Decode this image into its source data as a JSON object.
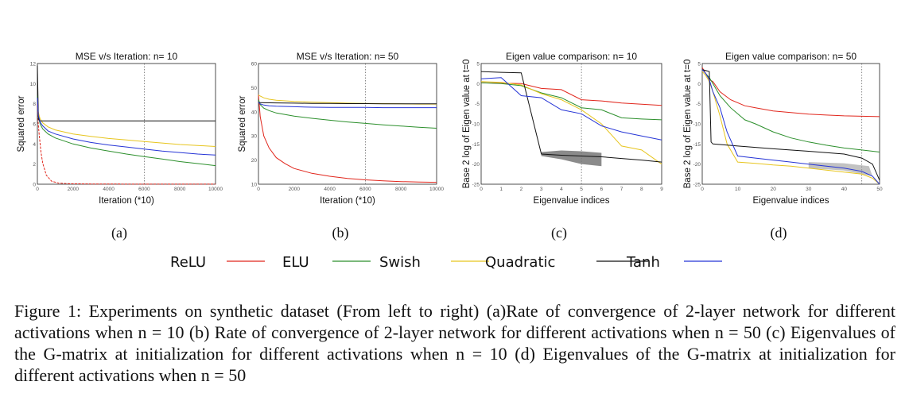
{
  "chart_data": [
    {
      "type": "line",
      "title": "MSE v/s Iteration: n= 10",
      "xlabel": "Iteration (*10)",
      "ylabel": "Squared error",
      "xlim": [
        0,
        10000
      ],
      "ylim": [
        0,
        12
      ],
      "x_ticks": [
        "0",
        "2000",
        "4000",
        "6000",
        "8000",
        "10000"
      ],
      "y_ticks": [
        "0",
        "2",
        "4",
        "6",
        "8",
        "10",
        "12"
      ],
      "grid": "x at 6000",
      "series": [
        {
          "name": "ReLU",
          "color": "#e1261c",
          "x": [
            0,
            50,
            100,
            200,
            300,
            500,
            800,
            1200,
            1800,
            3000,
            6000,
            10000
          ],
          "values": [
            8,
            6,
            5,
            3.2,
            2.1,
            0.9,
            0.3,
            0.1,
            0.05,
            0.02,
            0.01,
            0.01
          ]
        },
        {
          "name": "ELU",
          "color": "#2c8f2c",
          "x": [
            0,
            50,
            150,
            300,
            600,
            1000,
            2000,
            3000,
            4000,
            5000,
            6000,
            7000,
            8000,
            9000,
            10000
          ],
          "values": [
            8.8,
            6.8,
            6.0,
            5.5,
            5.0,
            4.6,
            4.0,
            3.6,
            3.3,
            3.0,
            2.75,
            2.5,
            2.25,
            2.05,
            1.85
          ]
        },
        {
          "name": "Swish",
          "color": "#e7c51e",
          "x": [
            0,
            50,
            150,
            300,
            600,
            1000,
            2000,
            3000,
            4000,
            5000,
            6000,
            7000,
            8000,
            9000,
            10000
          ],
          "values": [
            8.5,
            7.2,
            6.5,
            6.1,
            5.7,
            5.4,
            5.0,
            4.75,
            4.55,
            4.4,
            4.25,
            4.1,
            3.95,
            3.85,
            3.75
          ]
        },
        {
          "name": "Quadratic",
          "color": "#111111",
          "x": [
            0,
            60,
            120,
            10000
          ],
          "values": [
            11.8,
            6.5,
            6.3,
            6.3
          ]
        },
        {
          "name": "Tanh",
          "color": "#2534d6",
          "x": [
            0,
            50,
            150,
            300,
            600,
            1000,
            2000,
            3000,
            4000,
            5000,
            6000,
            7000,
            8000,
            9000,
            10000
          ],
          "values": [
            8.6,
            6.9,
            6.2,
            5.8,
            5.3,
            5.0,
            4.5,
            4.15,
            3.9,
            3.7,
            3.5,
            3.3,
            3.15,
            3.0,
            2.9
          ]
        }
      ]
    },
    {
      "type": "line",
      "title": "MSE v/s Iteration: n= 50",
      "xlabel": "Iteration (*10)",
      "ylabel": "Squared error",
      "xlim": [
        0,
        10000
      ],
      "ylim": [
        10,
        60
      ],
      "x_ticks": [
        "0",
        "2000",
        "4000",
        "6000",
        "8000",
        "10000"
      ],
      "y_ticks": [
        "10",
        "20",
        "30",
        "40",
        "50",
        "60"
      ],
      "grid": "x at 6000",
      "series": [
        {
          "name": "ReLU",
          "color": "#e1261c",
          "x": [
            0,
            100,
            300,
            600,
            1000,
            1500,
            2000,
            3000,
            4000,
            5000,
            6000,
            7000,
            8000,
            9000,
            10000
          ],
          "values": [
            47,
            38,
            30,
            25,
            21,
            18.5,
            16.5,
            14.5,
            13.3,
            12.4,
            11.8,
            11.4,
            11.1,
            10.9,
            10.8
          ]
        },
        {
          "name": "ELU",
          "color": "#2c8f2c",
          "x": [
            0,
            100,
            300,
            600,
            1000,
            2000,
            3000,
            4000,
            5000,
            6000,
            7000,
            8000,
            9000,
            10000
          ],
          "values": [
            45,
            43,
            41.5,
            40.5,
            39.5,
            38.2,
            37.3,
            36.5,
            35.8,
            35.2,
            34.6,
            34.1,
            33.6,
            33.2
          ]
        },
        {
          "name": "Swish",
          "color": "#e7c51e",
          "x": [
            0,
            100,
            300,
            600,
            1000,
            2000,
            3000,
            4000,
            5000,
            6000,
            7000,
            8000,
            9000,
            10000
          ],
          "values": [
            47,
            46.5,
            45.8,
            45.2,
            44.8,
            44.3,
            44.0,
            43.8,
            43.6,
            43.5,
            43.4,
            43.3,
            43.2,
            43.2
          ]
        },
        {
          "name": "Quadratic",
          "color": "#111111",
          "x": [
            0,
            1000,
            2000,
            3000,
            4000,
            5000,
            6000,
            7000,
            8000,
            9000,
            10000
          ],
          "values": [
            43.8,
            43.7,
            43.6,
            43.5,
            43.5,
            43.4,
            43.4,
            43.3,
            43.3,
            43.3,
            43.3
          ]
        },
        {
          "name": "Tanh",
          "color": "#2534d6",
          "x": [
            0,
            100,
            300,
            600,
            1000,
            2000,
            3000,
            4000,
            5000,
            6000,
            7000,
            8000,
            9000,
            10000
          ],
          "values": [
            44,
            43.3,
            42.8,
            42.5,
            42.3,
            42.1,
            41.9,
            41.8,
            41.8,
            41.8,
            41.7,
            41.7,
            41.7,
            41.7
          ]
        }
      ]
    },
    {
      "type": "line",
      "title": "Eigen value comparison: n= 10",
      "xlabel": "Eigenvalue indices",
      "ylabel": "Base 2 log of Eigen value at t=0",
      "xlim": [
        0,
        9
      ],
      "ylim": [
        -25,
        5
      ],
      "x_ticks": [
        "0",
        "1",
        "2",
        "3",
        "4",
        "5",
        "6",
        "7",
        "8",
        "9"
      ],
      "y_ticks": [
        "5",
        "0",
        "-5",
        "-10",
        "-15",
        "-20",
        "-25"
      ],
      "grid": "x at 5",
      "series": [
        {
          "name": "ReLU",
          "color": "#e1261c",
          "x": [
            0,
            1,
            2,
            3,
            4,
            5,
            6,
            7,
            8,
            9
          ],
          "values": [
            0.2,
            0.1,
            0,
            -1.2,
            -1.5,
            -4,
            -4.3,
            -4.8,
            -5.1,
            -5.4
          ]
        },
        {
          "name": "ELU",
          "color": "#2c8f2c",
          "x": [
            0,
            1,
            2,
            3,
            4,
            5,
            6,
            7,
            8,
            9
          ],
          "values": [
            0.2,
            0,
            -0.5,
            -2.3,
            -3.5,
            -6,
            -6.5,
            -8.5,
            -8.8,
            -9.0
          ]
        },
        {
          "name": "Swish",
          "color": "#e7c51e",
          "x": [
            0,
            1,
            2,
            3,
            4,
            5,
            6,
            7,
            8,
            9
          ],
          "values": [
            0.5,
            0.3,
            -0.3,
            -2.5,
            -4.0,
            -6.5,
            -10,
            -15.5,
            -16.5,
            -20
          ]
        },
        {
          "name": "Quadratic",
          "color": "#111111",
          "x": [
            0,
            1,
            2,
            3,
            4,
            5,
            6,
            7,
            8,
            9
          ],
          "values": [
            3,
            2.8,
            2.7,
            -17.5,
            -17.8,
            -18,
            -18.2,
            -18.6,
            -19,
            -19.5
          ]
        },
        {
          "name": "Tanh",
          "color": "#2534d6",
          "x": [
            0,
            1,
            2,
            3,
            4,
            5,
            6,
            7,
            8,
            9
          ],
          "values": [
            1.2,
            1.5,
            -3,
            -3.5,
            -6.5,
            -7.5,
            -10.5,
            -12,
            -13,
            -14
          ]
        }
      ]
    },
    {
      "type": "line",
      "title": "Eigen value comparison: n= 50",
      "xlabel": "Eigenvalue indices",
      "ylabel": "Base 2 log of Eigen value at t=0",
      "xlim": [
        0,
        50
      ],
      "ylim": [
        -25,
        5
      ],
      "x_ticks": [
        "0",
        "10",
        "20",
        "30",
        "40",
        "50"
      ],
      "y_ticks": [
        "5",
        "0",
        "-5",
        "-10",
        "-15",
        "-20",
        "-25"
      ],
      "grid": "x at 45",
      "series": [
        {
          "name": "ReLU",
          "color": "#e1261c",
          "x": [
            0,
            1,
            2,
            3,
            5,
            8,
            12,
            15,
            20,
            25,
            30,
            35,
            40,
            45,
            50
          ],
          "values": [
            4,
            2.5,
            1,
            0.5,
            -2,
            -4,
            -5.5,
            -6,
            -6.8,
            -7.2,
            -7.6,
            -7.8,
            -8.0,
            -8.1,
            -8.2
          ]
        },
        {
          "name": "ELU",
          "color": "#2c8f2c",
          "x": [
            0,
            1,
            2,
            3,
            5,
            8,
            12,
            15,
            20,
            25,
            30,
            35,
            40,
            45,
            50
          ],
          "values": [
            3.5,
            2.5,
            1.5,
            0,
            -3,
            -6,
            -9,
            -10,
            -12,
            -13.5,
            -14.5,
            -15.3,
            -16,
            -16.5,
            -17
          ]
        },
        {
          "name": "Swish",
          "color": "#e7c51e",
          "x": [
            0,
            1,
            2,
            3,
            5,
            7,
            10,
            15,
            20,
            25,
            30,
            35,
            40,
            45,
            48,
            50
          ],
          "values": [
            3,
            2,
            0.5,
            -2,
            -8,
            -15,
            -19.5,
            -19.8,
            -20.2,
            -20.5,
            -21,
            -21.5,
            -22,
            -22.5,
            -23.5,
            -25
          ]
        },
        {
          "name": "Quadratic",
          "color": "#111111",
          "x": [
            0,
            2,
            2.5,
            3,
            10,
            20,
            30,
            40,
            45,
            48,
            50
          ],
          "values": [
            3.5,
            3,
            -14.5,
            -15,
            -15.5,
            -16.2,
            -16.8,
            -17.5,
            -18.5,
            -20,
            -24
          ]
        },
        {
          "name": "Tanh",
          "color": "#2534d6",
          "x": [
            0,
            1,
            2,
            3,
            5,
            7,
            10,
            15,
            20,
            25,
            30,
            35,
            40,
            45,
            48,
            50
          ],
          "values": [
            3.5,
            2.5,
            1,
            -2,
            -6,
            -12,
            -18,
            -18.5,
            -19,
            -19.5,
            -20,
            -20.5,
            -21,
            -21.8,
            -23,
            -25
          ]
        }
      ]
    }
  ],
  "subfigure_labels": [
    "(a)",
    "(b)",
    "(c)",
    "(d)"
  ],
  "legend": [
    {
      "name": "ReLU",
      "color": "#e1261c"
    },
    {
      "name": "ELU",
      "color": "#2c8f2c"
    },
    {
      "name": "Swish",
      "color": "#e7c51e"
    },
    {
      "name": "Quadratic",
      "color": "#111111"
    },
    {
      "name": "Tanh",
      "color": "#2534d6"
    }
  ],
  "caption": "Figure 1: Experiments on synthetic dataset (From left to right) (a)Rate of convergence of 2-layer network for different activations when n = 10 (b) Rate of convergence of 2-layer network for different activations when n = 50 (c) Eigenvalues of the G-matrix at initialization for different activations when n = 10 (d) Eigenvalues of the G-matrix at initialization for different activations when n = 50"
}
